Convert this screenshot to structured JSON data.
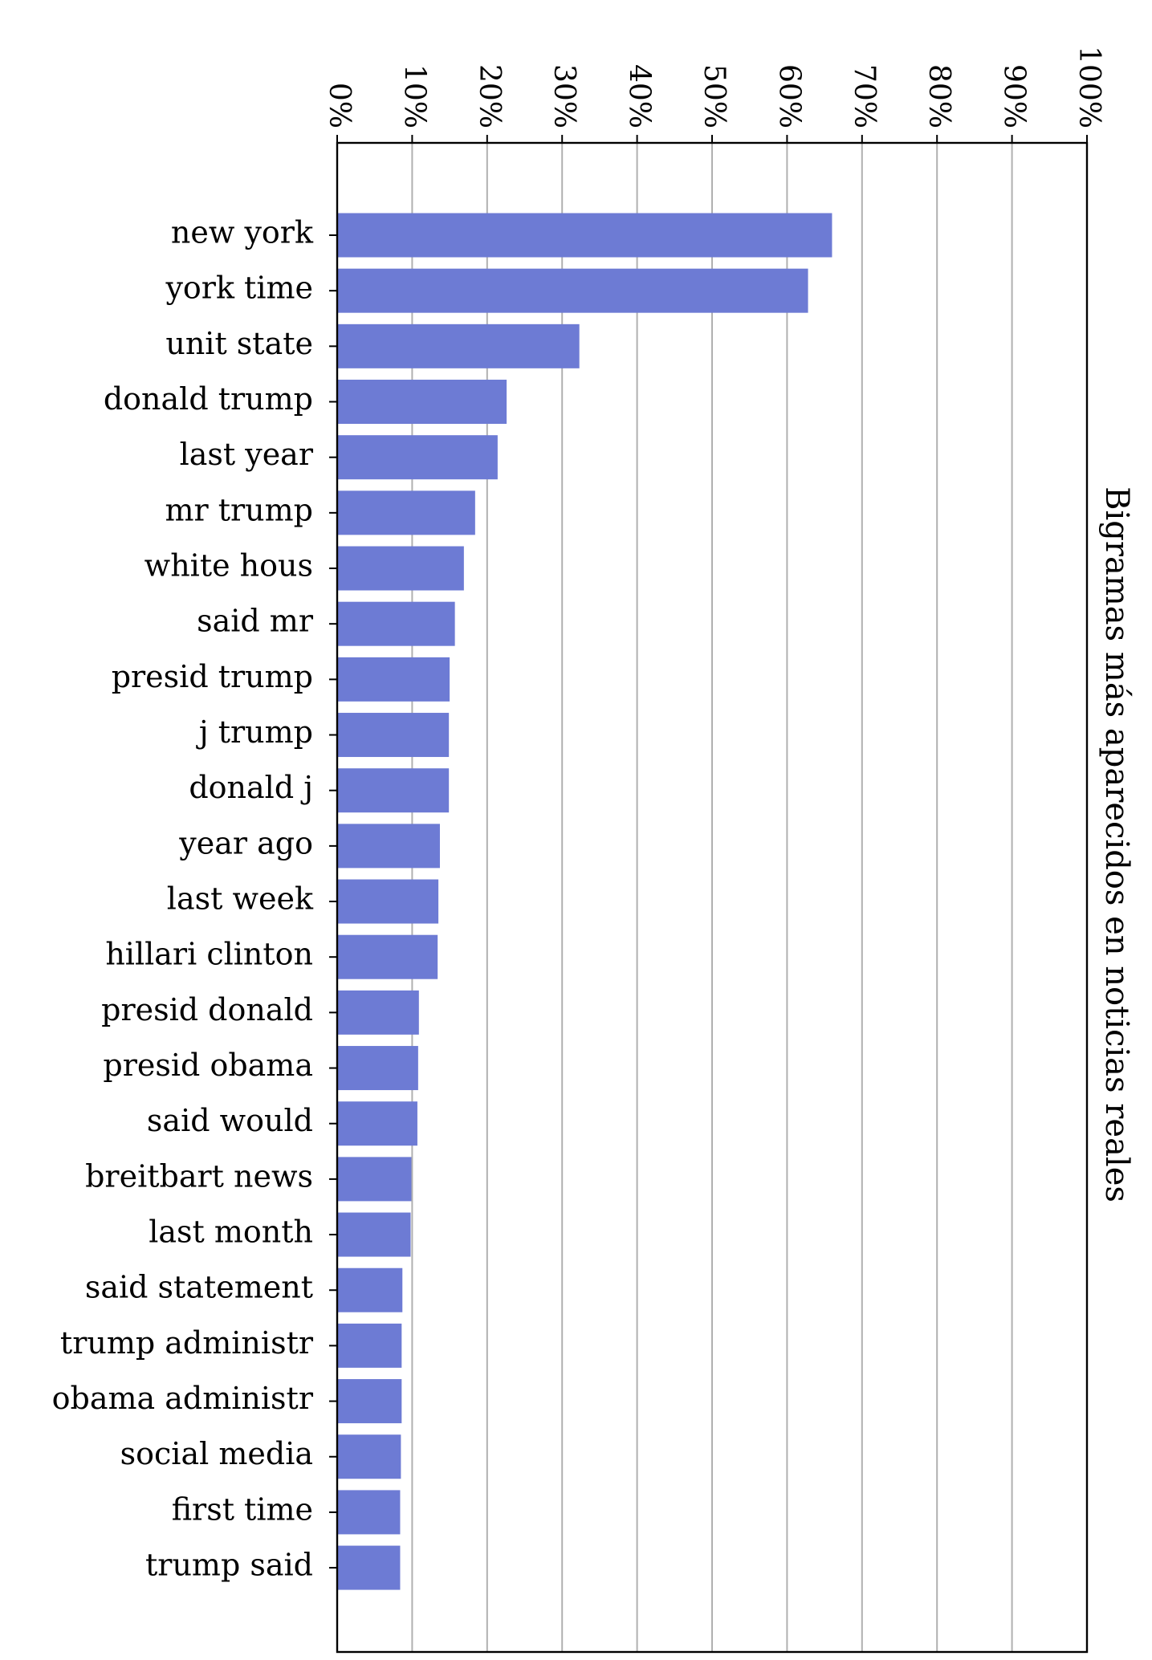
{
  "chart_data": {
    "type": "bar",
    "orientation": "horizontal",
    "title": "",
    "ylabel": "Bigramas más aparecidos en noticias reales",
    "xlabel": "",
    "xlim": [
      0,
      100
    ],
    "x_ticks": [
      "0%",
      "10%",
      "20%",
      "30%",
      "40%",
      "50%",
      "60%",
      "70%",
      "80%",
      "90%",
      "100%"
    ],
    "grid": "vertical",
    "bar_color": "#6d7bd4",
    "categories": [
      "new york",
      "york time",
      "unit state",
      "donald trump",
      "last year",
      "mr trump",
      "white hous",
      "said mr",
      "presid trump",
      "j trump",
      "donald j",
      "year ago",
      "last week",
      "hillari clinton",
      "presid donald",
      "presid obama",
      "said would",
      "breitbart news",
      "last month",
      "said statement",
      "trump administr",
      "obama administr",
      "social media",
      "first time",
      "trump said"
    ],
    "values": [
      66.0,
      62.8,
      32.3,
      22.6,
      21.4,
      18.4,
      16.9,
      15.7,
      15.0,
      14.9,
      14.9,
      13.7,
      13.5,
      13.4,
      10.9,
      10.8,
      10.7,
      9.9,
      9.8,
      8.7,
      8.6,
      8.6,
      8.5,
      8.4,
      8.4
    ]
  }
}
